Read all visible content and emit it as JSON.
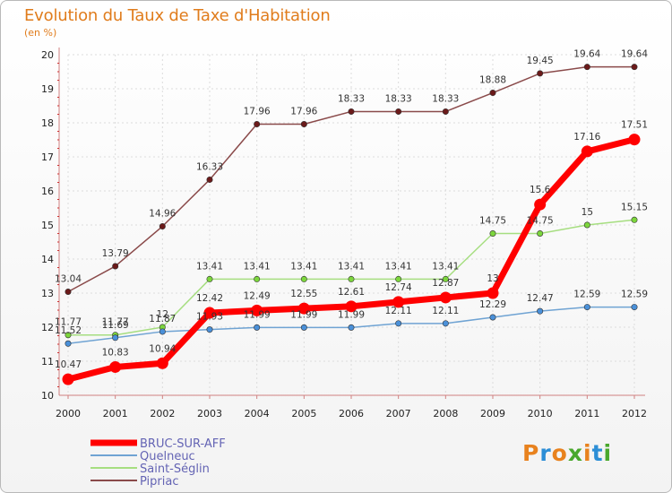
{
  "header": {
    "title": "Evolution du Taux de Taxe d'Habitation",
    "unit": "(en %)"
  },
  "brand": {
    "text": "Proxiti",
    "colors": [
      "#e8821e",
      "#2c8ed6",
      "#e8821e",
      "#49a82c",
      "#e8821e",
      "#2c8ed6",
      "#49a82c"
    ]
  },
  "chart_data": {
    "type": "line",
    "title": "Evolution du Taux de Taxe d'Habitation",
    "ylabel": "(en %)",
    "xlabel": "",
    "x": [
      "2000",
      "2001",
      "2002",
      "2003",
      "2004",
      "2005",
      "2006",
      "2007",
      "2008",
      "2009",
      "2010",
      "2011",
      "2012"
    ],
    "ylim": [
      10,
      20
    ],
    "yticks": [
      "10",
      "11",
      "12",
      "13",
      "14",
      "15",
      "16",
      "17",
      "18",
      "19",
      "20"
    ],
    "legend_position": "bottom-left",
    "series": [
      {
        "name": "Pipriac",
        "color": "#6b1a1a",
        "line_color": "#8a4a4a",
        "values": [
          13.04,
          13.79,
          14.96,
          16.33,
          17.96,
          17.96,
          18.33,
          18.33,
          18.33,
          18.88,
          19.45,
          19.64,
          19.64
        ],
        "labels": [
          "13.04",
          "13.79",
          "14.96",
          "16.33",
          "17.96",
          "17.96",
          "18.33",
          "18.33",
          "18.33",
          "18.88",
          "19.45",
          "19.64",
          "19.64"
        ]
      },
      {
        "name": "Saint-Séglin",
        "color": "#7cd63c",
        "line_color": "#a6de80",
        "values": [
          11.77,
          11.77,
          12,
          13.41,
          13.41,
          13.41,
          13.41,
          13.41,
          13.41,
          14.75,
          14.75,
          15,
          15.15
        ],
        "labels": [
          "11.77",
          "11.77",
          "12",
          "13.41",
          "13.41",
          "13.41",
          "13.41",
          "13.41",
          "13.41",
          "14.75",
          "14.75",
          "15",
          "15.15"
        ]
      },
      {
        "name": "Quelneuc",
        "color": "#4a90d9",
        "line_color": "#6fa3d3",
        "values": [
          11.52,
          11.69,
          11.87,
          11.93,
          11.99,
          11.99,
          11.99,
          12.11,
          12.11,
          12.29,
          12.47,
          12.59,
          12.59
        ],
        "labels": [
          "11.52",
          "11.69",
          "11.87",
          "11.93",
          "11.99",
          "11.99",
          "11.99",
          "12.11",
          "12.11",
          "12.29",
          "12.47",
          "12.59",
          "12.59"
        ]
      },
      {
        "name": "BRUC-SUR-AFF",
        "color": "#ff0000",
        "line_color": "#ff0000",
        "values": [
          10.47,
          10.83,
          10.94,
          12.42,
          12.49,
          12.55,
          12.61,
          12.74,
          12.87,
          13,
          15.6,
          17.16,
          17.51
        ],
        "labels": [
          "10.47",
          "10.83",
          "10.94",
          "12.42",
          "12.49",
          "12.55",
          "12.61",
          "12.74",
          "12.87",
          "13",
          "15.6",
          "17.16",
          "17.51"
        ]
      }
    ],
    "legend": [
      "BRUC-SUR-AFF",
      "Quelneuc",
      "Saint-Séglin",
      "Pipriac"
    ]
  }
}
